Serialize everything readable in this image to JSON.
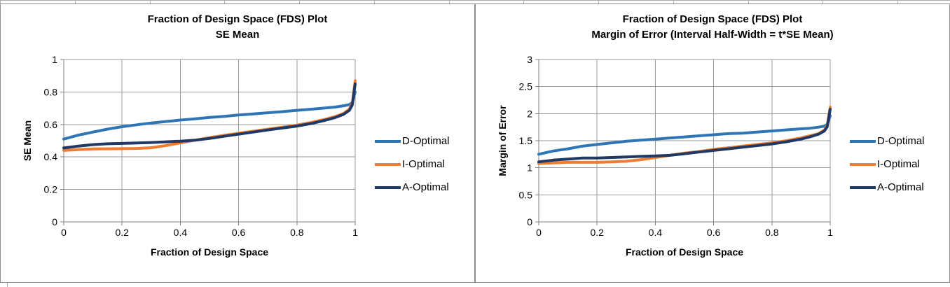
{
  "chart_data": [
    {
      "type": "line",
      "title": "Fraction of Design Space (FDS) Plot",
      "subtitle": "SE Mean",
      "xlabel": "Fraction of Design Space",
      "ylabel": "SE Mean",
      "xlim": [
        0,
        1
      ],
      "ylim": [
        0,
        1
      ],
      "x_ticks": [
        0,
        0.2,
        0.4,
        0.6,
        0.8,
        1
      ],
      "y_ticks": [
        0,
        0.2,
        0.4,
        0.6,
        0.8,
        1
      ],
      "grid": true,
      "legend_position": "right",
      "x": [
        0,
        0.05,
        0.1,
        0.15,
        0.2,
        0.25,
        0.3,
        0.35,
        0.4,
        0.45,
        0.5,
        0.55,
        0.6,
        0.65,
        0.7,
        0.75,
        0.8,
        0.85,
        0.9,
        0.93,
        0.96,
        0.98,
        0.99,
        1
      ],
      "series": [
        {
          "name": "D-Optimal",
          "color": "#2E75B6",
          "values": [
            0.51,
            0.534,
            0.553,
            0.571,
            0.586,
            0.598,
            0.609,
            0.618,
            0.627,
            0.635,
            0.643,
            0.65,
            0.658,
            0.665,
            0.672,
            0.679,
            0.687,
            0.694,
            0.702,
            0.707,
            0.715,
            0.722,
            0.735,
            0.8
          ]
        },
        {
          "name": "I-Optimal",
          "color": "#ED7D31",
          "values": [
            0.44,
            0.445,
            0.449,
            0.45,
            0.451,
            0.452,
            0.457,
            0.47,
            0.486,
            0.503,
            0.519,
            0.533,
            0.546,
            0.558,
            0.571,
            0.583,
            0.596,
            0.613,
            0.633,
            0.648,
            0.668,
            0.695,
            0.73,
            0.87
          ]
        },
        {
          "name": "A-Optimal",
          "color": "#203864",
          "values": [
            0.455,
            0.467,
            0.476,
            0.481,
            0.483,
            0.486,
            0.489,
            0.493,
            0.497,
            0.503,
            0.514,
            0.527,
            0.54,
            0.553,
            0.566,
            0.578,
            0.59,
            0.606,
            0.627,
            0.642,
            0.662,
            0.687,
            0.72,
            0.85
          ]
        }
      ]
    },
    {
      "type": "line",
      "title": "Fraction of Design Space (FDS) Plot",
      "subtitle": "Margin of Error (Interval Half-Width = t*SE Mean)",
      "xlabel": "Fraction of Design Space",
      "ylabel": "Margin of Error",
      "xlim": [
        0,
        1
      ],
      "ylim": [
        0,
        3
      ],
      "x_ticks": [
        0,
        0.2,
        0.4,
        0.6,
        0.8,
        1
      ],
      "y_ticks": [
        0,
        0.5,
        1,
        1.5,
        2,
        2.5,
        3
      ],
      "grid": true,
      "legend_position": "right",
      "x": [
        0,
        0.05,
        0.1,
        0.15,
        0.2,
        0.25,
        0.3,
        0.35,
        0.4,
        0.45,
        0.5,
        0.55,
        0.6,
        0.65,
        0.7,
        0.75,
        0.8,
        0.85,
        0.9,
        0.93,
        0.96,
        0.98,
        0.99,
        1
      ],
      "series": [
        {
          "name": "D-Optimal",
          "color": "#2E75B6",
          "values": [
            1.25,
            1.31,
            1.35,
            1.4,
            1.43,
            1.46,
            1.49,
            1.51,
            1.53,
            1.55,
            1.57,
            1.59,
            1.61,
            1.63,
            1.64,
            1.66,
            1.68,
            1.7,
            1.72,
            1.73,
            1.75,
            1.77,
            1.8,
            1.96
          ]
        },
        {
          "name": "I-Optimal",
          "color": "#ED7D31",
          "values": [
            1.08,
            1.09,
            1.1,
            1.1,
            1.1,
            1.11,
            1.12,
            1.15,
            1.19,
            1.23,
            1.27,
            1.3,
            1.34,
            1.37,
            1.4,
            1.43,
            1.46,
            1.5,
            1.55,
            1.59,
            1.63,
            1.7,
            1.79,
            2.12
          ]
        },
        {
          "name": "A-Optimal",
          "color": "#203864",
          "values": [
            1.11,
            1.14,
            1.16,
            1.18,
            1.18,
            1.19,
            1.2,
            1.21,
            1.22,
            1.23,
            1.26,
            1.29,
            1.32,
            1.35,
            1.38,
            1.41,
            1.44,
            1.48,
            1.53,
            1.57,
            1.62,
            1.68,
            1.76,
            2.08
          ]
        }
      ]
    }
  ],
  "colors": {
    "gridline": "#9a9a9a",
    "axis": "#808080",
    "chart_border": "#8c8c8c",
    "d_optimal": "#2E75B6",
    "i_optimal": "#ED7D31",
    "a_optimal": "#203864"
  }
}
